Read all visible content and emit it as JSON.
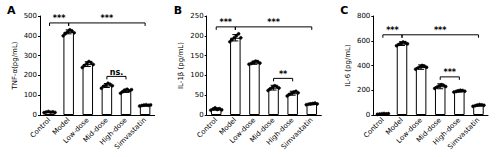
{
  "chart_data": [
    {
      "type": "bar",
      "title": "A",
      "y_label": "TNF-α(pg/mL)",
      "categories": [
        "Control",
        "Model",
        "Low-dose",
        "Mid-dose",
        "High-dose",
        "Simvastatin"
      ],
      "values": [
        15,
        420,
        257,
        149,
        122,
        49
      ],
      "errors": [
        3,
        10,
        12,
        10,
        8,
        4
      ],
      "points": [
        [
          12,
          15,
          18,
          14,
          16,
          13
        ],
        [
          400,
          410,
          420,
          430,
          425,
          415
        ],
        [
          240,
          250,
          260,
          270,
          265,
          255
        ],
        [
          135,
          145,
          150,
          160,
          155,
          148
        ],
        [
          110,
          118,
          125,
          130,
          122,
          128
        ],
        [
          45,
          48,
          50,
          52,
          49,
          51
        ]
      ],
      "color": "#ffffff",
      "ylim": [
        0,
        500
      ],
      "yticks": [
        0,
        100,
        200,
        300,
        400,
        500
      ],
      "annotations": [
        {
          "text": "***",
          "from": "Control",
          "to": "Model"
        },
        {
          "text": "***",
          "from": "Model",
          "to": "Simvastatin"
        },
        {
          "text": "ns.",
          "from": "Mid-dose",
          "to": "High-dose"
        }
      ]
    },
    {
      "type": "bar",
      "title": "B",
      "y_label": "IL-1β (pg/mL)",
      "categories": [
        "Control",
        "Model",
        "Low-dose",
        "Mid-dose",
        "High-dose",
        "Simvastatin"
      ],
      "values": [
        15,
        195,
        132,
        69,
        55,
        28
      ],
      "errors": [
        3,
        8,
        4,
        6,
        5,
        2
      ],
      "points": [
        [
          12,
          15,
          18,
          14,
          16,
          13
        ],
        [
          185,
          190,
          195,
          200,
          205,
          195
        ],
        [
          128,
          130,
          133,
          136,
          135,
          131
        ],
        [
          62,
          66,
          70,
          74,
          72,
          68
        ],
        [
          48,
          52,
          55,
          58,
          60,
          56
        ],
        [
          26,
          27,
          28,
          29,
          30,
          28
        ]
      ],
      "color": "#ffffff",
      "ylim": [
        0,
        250
      ],
      "yticks": [
        0,
        50,
        100,
        150,
        200,
        250
      ],
      "annotations": [
        {
          "text": "***",
          "from": "Control",
          "to": "Model"
        },
        {
          "text": "***",
          "from": "Model",
          "to": "Simvastatin"
        },
        {
          "text": "**",
          "from": "Mid-dose",
          "to": "High-dose"
        }
      ]
    },
    {
      "type": "bar",
      "title": "C",
      "y_label": "IL-6 (pg/mL)",
      "categories": [
        "Control",
        "Model",
        "Low-dose",
        "Mid-dose",
        "High-dose",
        "Simvastatin"
      ],
      "values": [
        9,
        577,
        387,
        232,
        193,
        78
      ],
      "errors": [
        3,
        15,
        18,
        20,
        8,
        6
      ],
      "points": [
        [
          5,
          8,
          10,
          12,
          9,
          11
        ],
        [
          560,
          570,
          580,
          590,
          585,
          575
        ],
        [
          370,
          380,
          390,
          400,
          395,
          385
        ],
        [
          215,
          225,
          235,
          245,
          240,
          230
        ],
        [
          185,
          190,
          195,
          200,
          198,
          192
        ],
        [
          70,
          75,
          80,
          85,
          82,
          78
        ]
      ],
      "color": "#ffffff",
      "ylim": [
        0,
        800
      ],
      "yticks": [
        0,
        200,
        400,
        600,
        800
      ],
      "annotations": [
        {
          "text": "***",
          "from": "Control",
          "to": "Model"
        },
        {
          "text": "***",
          "from": "Model",
          "to": "Simvastatin"
        },
        {
          "text": "***",
          "from": "Mid-dose",
          "to": "High-dose"
        }
      ]
    }
  ]
}
